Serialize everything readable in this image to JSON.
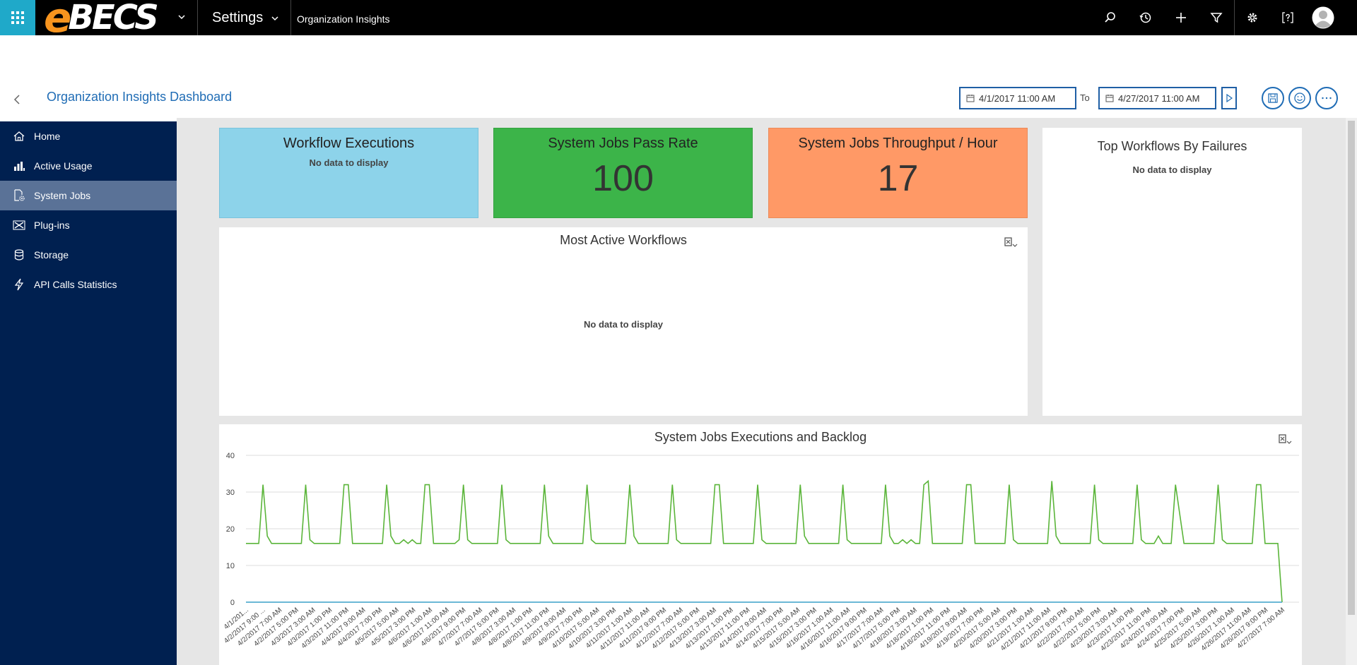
{
  "topbar": {
    "logo_prefix": "e",
    "logo_rest": "BECS",
    "area_label": "Settings",
    "breadcrumb": "Organization Insights",
    "icons": [
      "search-icon",
      "history-icon",
      "plus-icon",
      "filter-icon",
      "gear-icon",
      "help-icon",
      "user-avatar-icon"
    ]
  },
  "titlebar": {
    "title": "Organization Insights Dashboard",
    "from_date": "4/1/2017 11:00 AM",
    "to_label": "To",
    "to_date": "4/27/2017 11:00 AM"
  },
  "sidebar": {
    "items": [
      {
        "label": "Home",
        "icon": "home-icon"
      },
      {
        "label": "Active Usage",
        "icon": "bar-chart-icon"
      },
      {
        "label": "System Jobs",
        "icon": "system-jobs-icon",
        "active": true
      },
      {
        "label": "Plug-ins",
        "icon": "plugin-icon"
      },
      {
        "label": "Storage",
        "icon": "database-icon"
      },
      {
        "label": "API Calls Statistics",
        "icon": "lightning-icon"
      }
    ]
  },
  "tiles": {
    "workflow_executions": {
      "title": "Workflow Executions",
      "empty": "No data to display",
      "color": "#8dd3ea"
    },
    "pass_rate": {
      "title": "System Jobs Pass Rate",
      "value": "100",
      "color": "#3cb449"
    },
    "throughput": {
      "title": "System Jobs Throughput / Hour",
      "value": "17",
      "color": "#ff9966"
    }
  },
  "panels": {
    "top_failures": {
      "title": "Top Workflows By Failures",
      "empty": "No data to display"
    },
    "most_active": {
      "title": "Most Active Workflows",
      "empty": "No data to display"
    },
    "executions_backlog": {
      "title": "System Jobs Executions and Backlog"
    }
  },
  "chart_data": {
    "type": "line",
    "title": "System Jobs Executions and Backlog",
    "ylim": [
      0,
      40
    ],
    "yticks": [
      0,
      10,
      20,
      30,
      40
    ],
    "grid": true,
    "colors": {
      "executions": "#5bb53a",
      "backlog": "#3aa0c8"
    },
    "x_labels": [
      "4/1/201...",
      "4/2/2017 9:00 ...",
      "4/2/2017 7:00 AM",
      "4/2/2017 5:00 PM",
      "4/3/2017 3:00 AM",
      "4/3/2017 1:00 PM",
      "4/3/2017 11:00 PM",
      "4/4/2017 9:00 AM",
      "4/4/2017 7:00 PM",
      "4/5/2017 5:00 AM",
      "4/5/2017 3:00 PM",
      "4/6/2017 1:00 AM",
      "4/6/2017 11:00 AM",
      "4/6/2017 9:00 PM",
      "4/7/2017 7:00 AM",
      "4/7/2017 5:00 PM",
      "4/8/2017 3:00 AM",
      "4/8/2017 1:00 PM",
      "4/8/2017 11:00 PM",
      "4/9/2017 9:00 AM",
      "4/9/2017 7:00 PM",
      "4/10/2017 5:00 AM",
      "4/10/2017 3:00 PM",
      "4/11/2017 1:00 AM",
      "4/11/2017 11:00 AM",
      "4/11/2017 9:00 PM",
      "4/12/2017 7:00 AM",
      "4/12/2017 5:00 PM",
      "4/13/2017 3:00 AM",
      "4/13/2017 1:00 PM",
      "4/13/2017 11:00 PM",
      "4/14/2017 9:00 AM",
      "4/14/2017 7:00 PM",
      "4/15/2017 5:00 AM",
      "4/15/2017 3:00 PM",
      "4/16/2017 1:00 AM",
      "4/16/2017 11:00 AM",
      "4/16/2017 9:00 PM",
      "4/17/2017 7:00 AM",
      "4/17/2017 5:00 PM",
      "4/18/2017 3:00 AM",
      "4/18/2017 1:00 PM",
      "4/18/2017 11:00 PM",
      "4/19/2017 9:00 AM",
      "4/19/2017 7:00 PM",
      "4/20/2017 5:00 AM",
      "4/20/2017 3:00 PM",
      "4/21/2017 1:00 AM",
      "4/21/2017 11:00 AM",
      "4/21/2017 9:00 PM",
      "4/22/2017 7:00 AM",
      "4/22/2017 5:00 PM",
      "4/23/2017 3:00 AM",
      "4/23/2017 1:00 PM",
      "4/23/2017 11:00 PM",
      "4/24/2017 9:00 AM",
      "4/24/2017 7:00 PM",
      "4/25/2017 5:00 AM",
      "4/25/2017 3:00 PM",
      "4/26/2017 1:00 AM",
      "4/26/2017 11:00 AM",
      "4/26/2017 9:00 PM",
      "4/27/2017 7:00 AM"
    ],
    "series": [
      {
        "values": [
          16,
          16,
          16,
          16,
          32,
          18,
          16,
          16,
          16,
          16,
          16,
          16,
          16,
          16,
          32,
          17,
          16,
          16,
          16,
          16,
          16,
          16,
          16,
          32,
          32,
          16,
          16,
          16,
          16,
          16,
          16,
          16,
          16,
          32,
          18,
          16,
          16,
          17,
          16,
          17,
          16,
          16,
          32,
          32,
          16,
          16,
          16,
          16,
          16,
          16,
          17,
          32,
          17,
          16,
          16,
          16,
          16,
          16,
          16,
          16,
          32,
          17,
          16,
          16,
          16,
          16,
          16,
          16,
          16,
          16,
          32,
          18,
          16,
          16,
          16,
          16,
          16,
          16,
          16,
          16,
          32,
          17,
          16,
          16,
          16,
          16,
          16,
          16,
          16,
          16,
          32,
          18,
          16,
          16,
          16,
          16,
          16,
          16,
          16,
          16,
          32,
          17,
          16,
          16,
          16,
          16,
          16,
          16,
          16,
          16,
          32,
          32,
          16,
          16,
          16,
          16,
          16,
          16,
          16,
          16,
          32,
          17,
          16,
          16,
          16,
          16,
          16,
          16,
          16,
          16,
          32,
          18,
          16,
          16,
          16,
          16,
          16,
          16,
          16,
          16,
          32,
          17,
          16,
          16,
          16,
          16,
          16,
          16,
          16,
          16,
          32,
          18,
          16,
          16,
          17,
          16,
          17,
          16,
          16,
          32,
          33,
          16,
          16,
          16,
          16,
          16,
          16,
          16,
          16,
          32,
          32,
          16,
          16,
          16,
          16,
          16,
          16,
          16,
          16,
          32,
          17,
          16,
          16,
          16,
          16,
          16,
          16,
          16,
          16,
          33,
          18,
          16,
          16,
          16,
          16,
          16,
          16,
          16,
          16,
          32,
          17,
          16,
          16,
          16,
          16,
          16,
          16,
          16,
          16,
          32,
          17,
          16,
          16,
          16,
          18,
          16,
          16,
          16,
          32,
          24,
          16,
          16,
          16,
          16,
          16,
          16,
          16,
          16,
          32,
          17,
          16,
          16,
          16,
          16,
          16,
          16,
          16,
          32,
          32,
          16,
          16,
          16,
          16,
          0
        ]
      },
      {
        "values": [
          0,
          0
        ]
      }
    ]
  }
}
